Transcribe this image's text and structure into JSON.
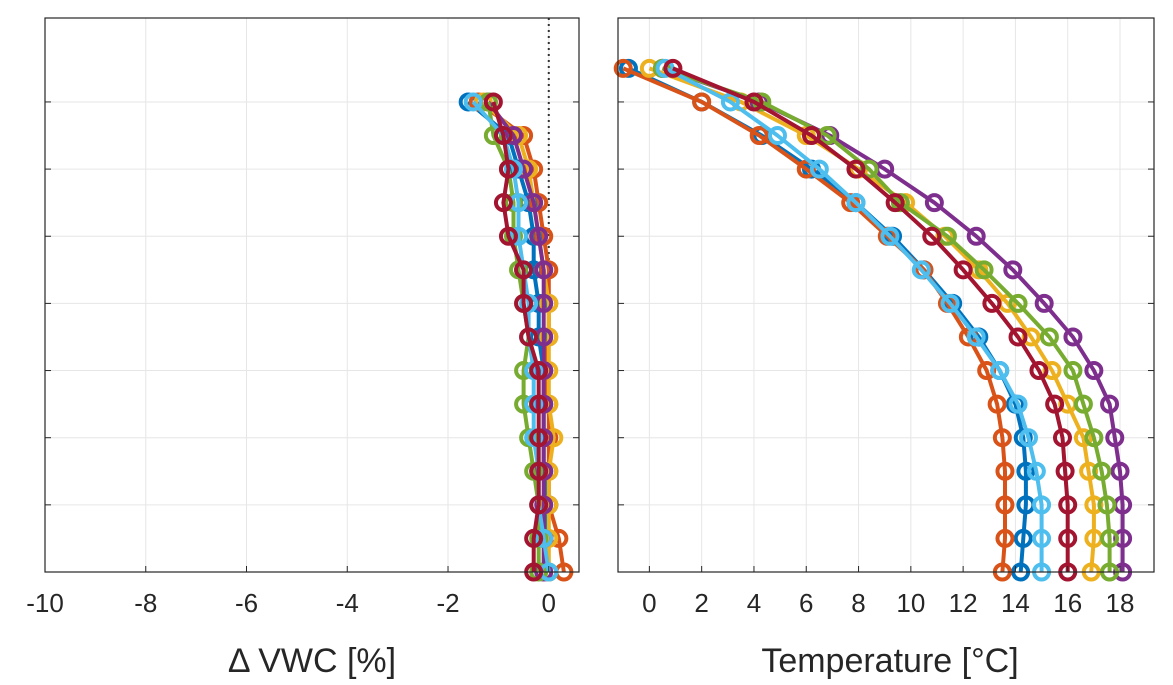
{
  "chart_data": [
    {
      "type": "line",
      "title": "",
      "xlabel": "Δ VWC [%]",
      "ylabel": "",
      "xlim": [
        -10,
        0.6
      ],
      "ylim": [
        -1.4,
        0.25
      ],
      "grid": true,
      "x_ticks": [
        -10,
        -8,
        -6,
        -4,
        -2,
        0
      ],
      "x_tick_labels": [
        "-10",
        "-8",
        "-6",
        "-4",
        "-2",
        "0"
      ],
      "reference_line": {
        "x": 0,
        "style": "dotted"
      },
      "depths": [
        0,
        -0.1,
        -0.2,
        -0.3,
        -0.4,
        -0.5,
        -0.6,
        -0.7,
        -0.8,
        -0.9,
        -1.0,
        -1.1,
        -1.2,
        -1.3,
        -1.4
      ],
      "series": [
        {
          "color": "#0072BD",
          "values": [
            -1.6,
            -0.8,
            -0.6,
            -0.4,
            -0.3,
            -0.3,
            -0.2,
            -0.2,
            -0.1,
            -0.1,
            -0.1,
            -0.1,
            0.0,
            -0.1,
            0.0
          ]
        },
        {
          "color": "#D95319",
          "values": [
            -1.4,
            -0.5,
            -0.3,
            -0.2,
            -0.1,
            0.0,
            0.0,
            0.0,
            -0.1,
            0.0,
            0.0,
            0.0,
            0.0,
            0.2,
            0.3
          ]
        },
        {
          "color": "#EDB120",
          "values": [
            -1.3,
            -0.6,
            -0.4,
            -0.3,
            -0.2,
            -0.1,
            0.0,
            0.0,
            0.0,
            0.0,
            0.1,
            0.0,
            0.0,
            0.0,
            0.0
          ]
        },
        {
          "color": "#7E2F8E",
          "values": [
            -1.2,
            -0.7,
            -0.5,
            -0.3,
            -0.2,
            -0.1,
            -0.1,
            -0.1,
            -0.1,
            -0.1,
            -0.1,
            -0.1,
            -0.1,
            -0.1,
            -0.1
          ]
        },
        {
          "color": "#77AC30",
          "values": [
            -1.2,
            -1.1,
            -0.8,
            -0.7,
            -0.7,
            -0.6,
            -0.5,
            -0.4,
            -0.5,
            -0.5,
            -0.4,
            -0.3,
            -0.2,
            -0.2,
            -0.2
          ]
        },
        {
          "color": "#4DBEEE",
          "values": [
            -1.5,
            -0.9,
            -0.7,
            -0.6,
            -0.6,
            -0.5,
            -0.4,
            -0.4,
            -0.3,
            -0.3,
            -0.3,
            -0.2,
            -0.2,
            -0.1,
            0.0
          ]
        },
        {
          "color": "#A2142F",
          "values": [
            -1.1,
            -0.9,
            -0.8,
            -0.9,
            -0.8,
            -0.5,
            -0.5,
            -0.4,
            -0.2,
            -0.2,
            -0.2,
            -0.2,
            -0.2,
            -0.3,
            -0.3
          ]
        }
      ]
    },
    {
      "type": "line",
      "title": "",
      "xlabel": "Temperature [°C]",
      "ylabel": "",
      "xlim": [
        -1.2,
        19.3
      ],
      "ylim": [
        -1.4,
        0.25
      ],
      "grid": true,
      "x_ticks": [
        0,
        2,
        4,
        6,
        8,
        10,
        12,
        14,
        16,
        18
      ],
      "x_tick_labels": [
        "0",
        "2",
        "4",
        "6",
        "8",
        "10",
        "12",
        "14",
        "16",
        "18"
      ],
      "depths": [
        0.1,
        0,
        -0.1,
        -0.2,
        -0.3,
        -0.4,
        -0.5,
        -0.6,
        -0.7,
        -0.8,
        -0.9,
        -1.0,
        -1.1,
        -1.2,
        -1.3,
        -1.4
      ],
      "series": [
        {
          "color": "#0072BD",
          "values": [
            -0.8,
            2.0,
            4.3,
            6.2,
            7.9,
            9.3,
            10.5,
            11.6,
            12.6,
            13.4,
            14.0,
            14.3,
            14.4,
            14.4,
            14.3,
            14.2
          ]
        },
        {
          "color": "#D95319",
          "values": [
            -1.0,
            2.0,
            4.2,
            6.0,
            7.7,
            9.1,
            10.5,
            11.4,
            12.2,
            12.9,
            13.3,
            13.5,
            13.6,
            13.6,
            13.6,
            13.5
          ]
        },
        {
          "color": "#EDB120",
          "values": [
            0.0,
            3.5,
            6.0,
            8.0,
            9.8,
            11.3,
            12.6,
            13.7,
            14.6,
            15.4,
            16.0,
            16.6,
            16.8,
            17.0,
            17.0,
            16.9
          ]
        },
        {
          "color": "#7E2F8E",
          "values": [
            0.5,
            4.2,
            6.9,
            9.0,
            10.9,
            12.5,
            13.9,
            15.1,
            16.2,
            17.0,
            17.6,
            17.8,
            18.0,
            18.1,
            18.1,
            18.1
          ]
        },
        {
          "color": "#77AC30",
          "values": [
            0.5,
            4.3,
            6.8,
            8.4,
            9.6,
            11.4,
            12.8,
            14.1,
            15.3,
            16.2,
            16.6,
            17.0,
            17.3,
            17.5,
            17.6,
            17.6
          ]
        },
        {
          "color": "#4DBEEE",
          "values": [
            0.6,
            3.1,
            4.9,
            6.5,
            7.9,
            9.2,
            10.4,
            11.5,
            12.5,
            13.4,
            14.1,
            14.5,
            14.8,
            15.0,
            15.0,
            15.0
          ]
        },
        {
          "color": "#A2142F",
          "values": [
            0.9,
            4.0,
            6.2,
            7.9,
            9.4,
            10.8,
            12.0,
            13.1,
            14.1,
            14.9,
            15.5,
            15.8,
            15.9,
            16.0,
            16.0,
            16.0
          ]
        }
      ]
    }
  ]
}
